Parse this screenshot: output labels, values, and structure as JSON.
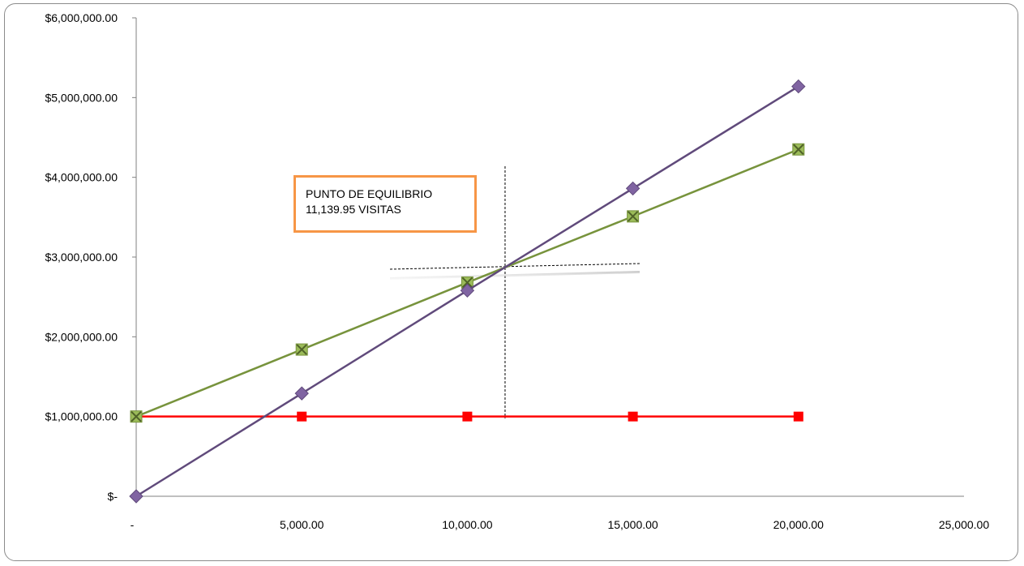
{
  "chart_data": {
    "type": "line",
    "title": "",
    "xlabel": "",
    "ylabel": "",
    "x": [
      0,
      5000,
      10000,
      15000,
      20000
    ],
    "xlim": [
      0,
      25000
    ],
    "ylim": [
      0,
      6000000
    ],
    "x_ticks": [
      0,
      5000,
      10000,
      15000,
      20000,
      25000
    ],
    "y_ticks": [
      0,
      1000000,
      2000000,
      3000000,
      4000000,
      5000000,
      6000000
    ],
    "x_tick_labels": [
      "-",
      "5,000.00",
      "10,000.00",
      "15,000.00",
      "20,000.00",
      "25,000.00"
    ],
    "y_tick_labels": [
      "$-",
      "$1,000,000.00",
      "$2,000,000.00",
      "$3,000,000.00",
      "$4,000,000.00",
      "$5,000,000.00",
      "$6,000,000.00"
    ],
    "grid": false,
    "legend": "none",
    "series": [
      {
        "marker": "square",
        "color": "#ff0000",
        "values": [
          1000000,
          1000000,
          1000000,
          1000000,
          1000000
        ]
      },
      {
        "marker": "x-square",
        "color": "#77933c",
        "values": [
          1000000,
          1840000,
          2680000,
          3510000,
          4350000
        ]
      },
      {
        "marker": "diamond",
        "color": "#604a7b",
        "values": [
          0,
          1290000,
          2580000,
          3860000,
          5140000
        ]
      }
    ],
    "annotation": {
      "lines": [
        "PUNTO DE EQUILIBRIO",
        "11,139.95 VISITAS"
      ],
      "border_color": "#f79646",
      "x": 11139.95
    }
  }
}
